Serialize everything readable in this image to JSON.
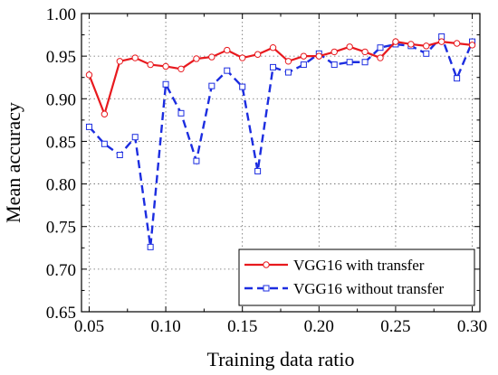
{
  "chart_data": {
    "type": "line",
    "title": "",
    "xlabel": "Training data ratio",
    "ylabel": "Mean accuracy",
    "xlim": [
      0.045,
      0.305
    ],
    "ylim": [
      0.65,
      1.0
    ],
    "xticks": [
      0.05,
      0.1,
      0.15,
      0.2,
      0.25,
      0.3
    ],
    "xtick_labels": [
      "0.05",
      "0.10",
      "0.15",
      "0.20",
      "0.25",
      "0.30"
    ],
    "yticks": [
      0.65,
      0.7,
      0.75,
      0.8,
      0.85,
      0.9,
      0.95,
      1.0
    ],
    "ytick_labels": [
      "0.65",
      "0.70",
      "0.75",
      "0.80",
      "0.85",
      "0.90",
      "0.95",
      "1.00"
    ],
    "grid": true,
    "legend_position": "bottom-right",
    "x": [
      0.05,
      0.06,
      0.07,
      0.08,
      0.09,
      0.1,
      0.11,
      0.12,
      0.13,
      0.14,
      0.15,
      0.16,
      0.17,
      0.18,
      0.19,
      0.2,
      0.21,
      0.22,
      0.23,
      0.24,
      0.25,
      0.26,
      0.27,
      0.28,
      0.29,
      0.3
    ],
    "series": [
      {
        "name": "VGG16 with transfer",
        "color": "#e8191e",
        "line": "solid",
        "marker": "circle",
        "values": [
          0.928,
          0.882,
          0.944,
          0.948,
          0.94,
          0.938,
          0.935,
          0.947,
          0.949,
          0.957,
          0.948,
          0.952,
          0.96,
          0.944,
          0.95,
          0.95,
          0.955,
          0.961,
          0.955,
          0.948,
          0.967,
          0.964,
          0.962,
          0.967,
          0.965,
          0.963
        ]
      },
      {
        "name": "VGG16 without transfer",
        "color": "#1c2de0",
        "line": "dashed",
        "marker": "square",
        "values": [
          0.867,
          0.847,
          0.834,
          0.855,
          0.726,
          0.917,
          0.883,
          0.827,
          0.915,
          0.933,
          0.914,
          0.815,
          0.937,
          0.931,
          0.94,
          0.953,
          0.94,
          0.943,
          0.943,
          0.96,
          0.964,
          0.962,
          0.953,
          0.973,
          0.924,
          0.967
        ]
      }
    ]
  }
}
